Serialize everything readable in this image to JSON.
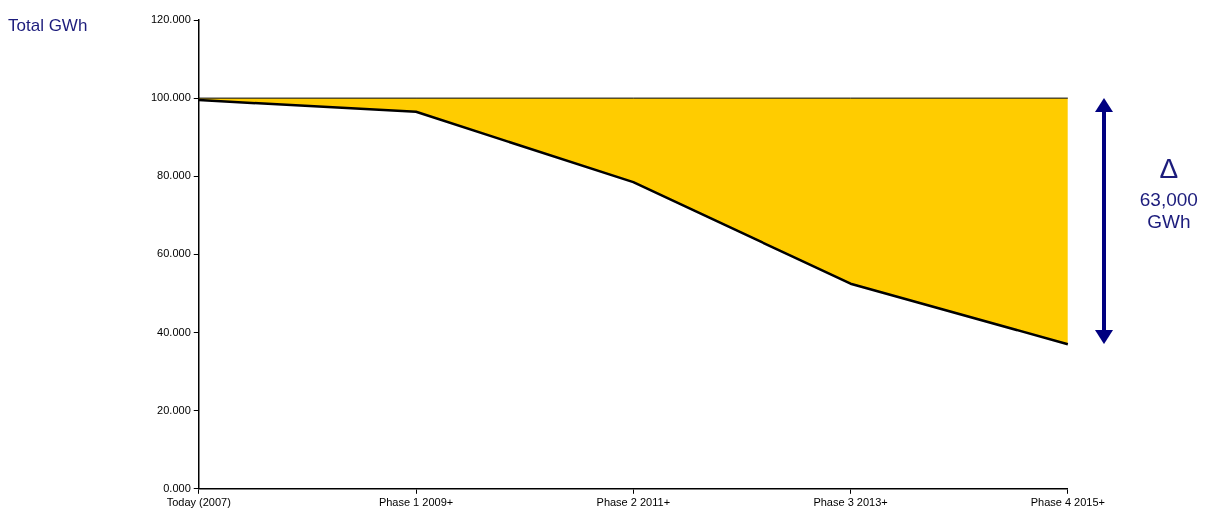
{
  "chart_data": {
    "type": "line",
    "ylabel": "Total GWh",
    "categories": [
      "Today (2007)",
      "Phase 1 2009+",
      "Phase 2 2011+",
      "Phase 3 2013+",
      "Phase 4 2015+"
    ],
    "series": [
      {
        "color": "#000000",
        "values": [
          99.5,
          96.5,
          78.5,
          52.5,
          37
        ]
      },
      {
        "type": "area",
        "color": "#ffcc00",
        "values": [
          100,
          100,
          100,
          100,
          100
        ]
      }
    ],
    "ylim": [
      0,
      120
    ],
    "yticks": [
      {
        "value": 0,
        "label": "0.000"
      },
      {
        "value": 20,
        "label": "20.000"
      },
      {
        "value": 40,
        "label": "40.000"
      },
      {
        "value": 60,
        "label": "60.000"
      },
      {
        "value": 80,
        "label": "80.000"
      },
      {
        "value": 100,
        "label": "100.000"
      },
      {
        "value": 120,
        "label": "120.000"
      }
    ],
    "grid": false,
    "legend": false,
    "marker": "none",
    "annotations": [
      "Δ",
      "63,000 GWh"
    ]
  }
}
